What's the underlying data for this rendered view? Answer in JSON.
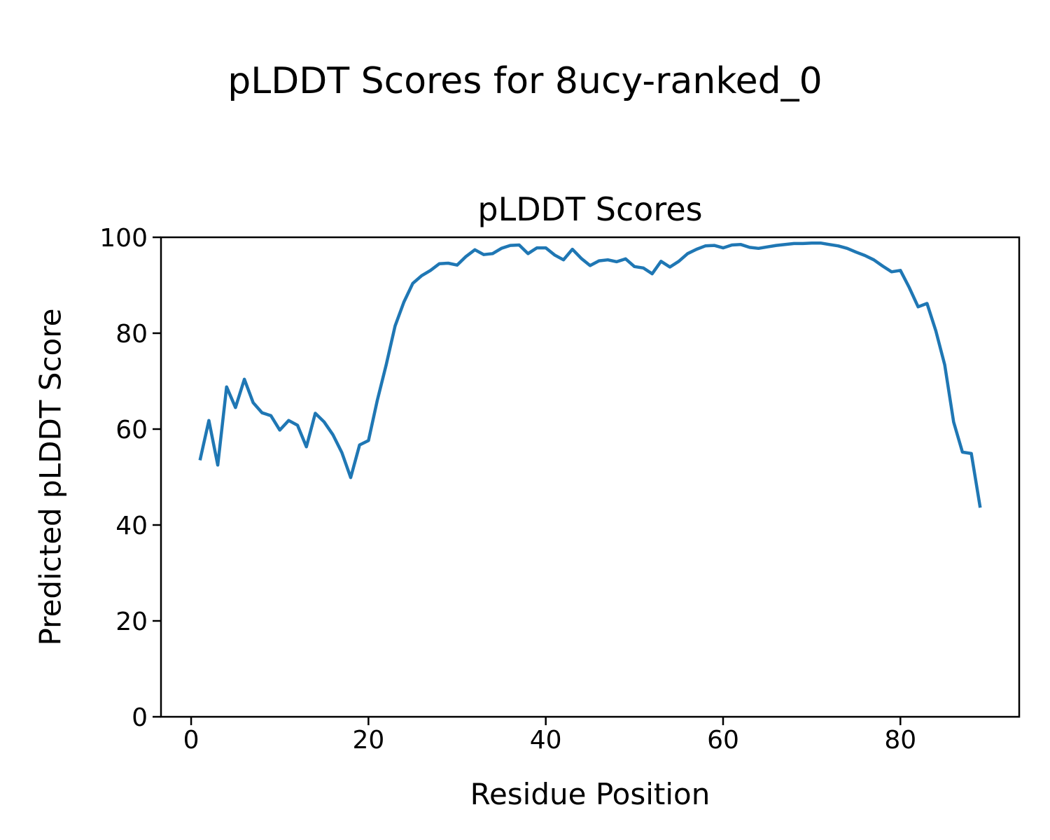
{
  "figure": {
    "suptitle": "pLDDT Scores for 8ucy-ranked_0",
    "background": "#ffffff"
  },
  "chart_data": {
    "type": "line",
    "title": "pLDDT Scores",
    "xlabel": "Residue Position",
    "ylabel": "Predicted pLDDT Score",
    "xlim": [
      -3.4,
      93.4
    ],
    "ylim": [
      0,
      100
    ],
    "x_ticks": [
      0,
      20,
      40,
      60,
      80
    ],
    "y_ticks": [
      0,
      20,
      40,
      60,
      80,
      100
    ],
    "grid": false,
    "legend_position": "none",
    "line_color": "#1f77b4",
    "axes_color": "#000000",
    "series": [
      {
        "name": "pLDDT",
        "x": [
          1,
          2,
          3,
          4,
          5,
          6,
          7,
          8,
          9,
          10,
          11,
          12,
          13,
          14,
          15,
          16,
          17,
          18,
          19,
          20,
          21,
          22,
          23,
          24,
          25,
          26,
          27,
          28,
          29,
          30,
          31,
          32,
          33,
          34,
          35,
          36,
          37,
          38,
          39,
          40,
          41,
          42,
          43,
          44,
          45,
          46,
          47,
          48,
          49,
          50,
          51,
          52,
          53,
          54,
          55,
          56,
          57,
          58,
          59,
          60,
          61,
          62,
          63,
          64,
          65,
          66,
          67,
          68,
          69,
          70,
          71,
          72,
          73,
          74,
          75,
          76,
          77,
          78,
          79,
          80,
          81,
          82,
          83,
          84,
          85,
          86,
          87,
          88,
          89
        ],
        "y": [
          53.5,
          61.8,
          52.5,
          68.8,
          64.5,
          70.4,
          65.5,
          63.4,
          62.8,
          59.8,
          61.8,
          60.8,
          56.3,
          63.3,
          61.5,
          58.8,
          55.1,
          49.9,
          56.7,
          57.6,
          66.0,
          73.4,
          81.5,
          86.5,
          90.4,
          92.0,
          93.1,
          94.5,
          94.6,
          94.2,
          96.0,
          97.4,
          96.4,
          96.6,
          97.7,
          98.3,
          98.4,
          96.6,
          97.8,
          97.8,
          96.3,
          95.3,
          97.5,
          95.6,
          94.1,
          95.1,
          95.3,
          94.9,
          95.5,
          93.9,
          93.6,
          92.4,
          95.0,
          93.8,
          95.0,
          96.6,
          97.5,
          98.2,
          98.3,
          97.8,
          98.4,
          98.5,
          97.9,
          97.7,
          98.0,
          98.3,
          98.5,
          98.7,
          98.7,
          98.8,
          98.8,
          98.5,
          98.2,
          97.7,
          96.9,
          96.2,
          95.3,
          94.0,
          92.8,
          93.1,
          89.5,
          85.5,
          86.2,
          80.5,
          73.4,
          61.5,
          55.2,
          54.9,
          43.6
        ]
      }
    ]
  }
}
